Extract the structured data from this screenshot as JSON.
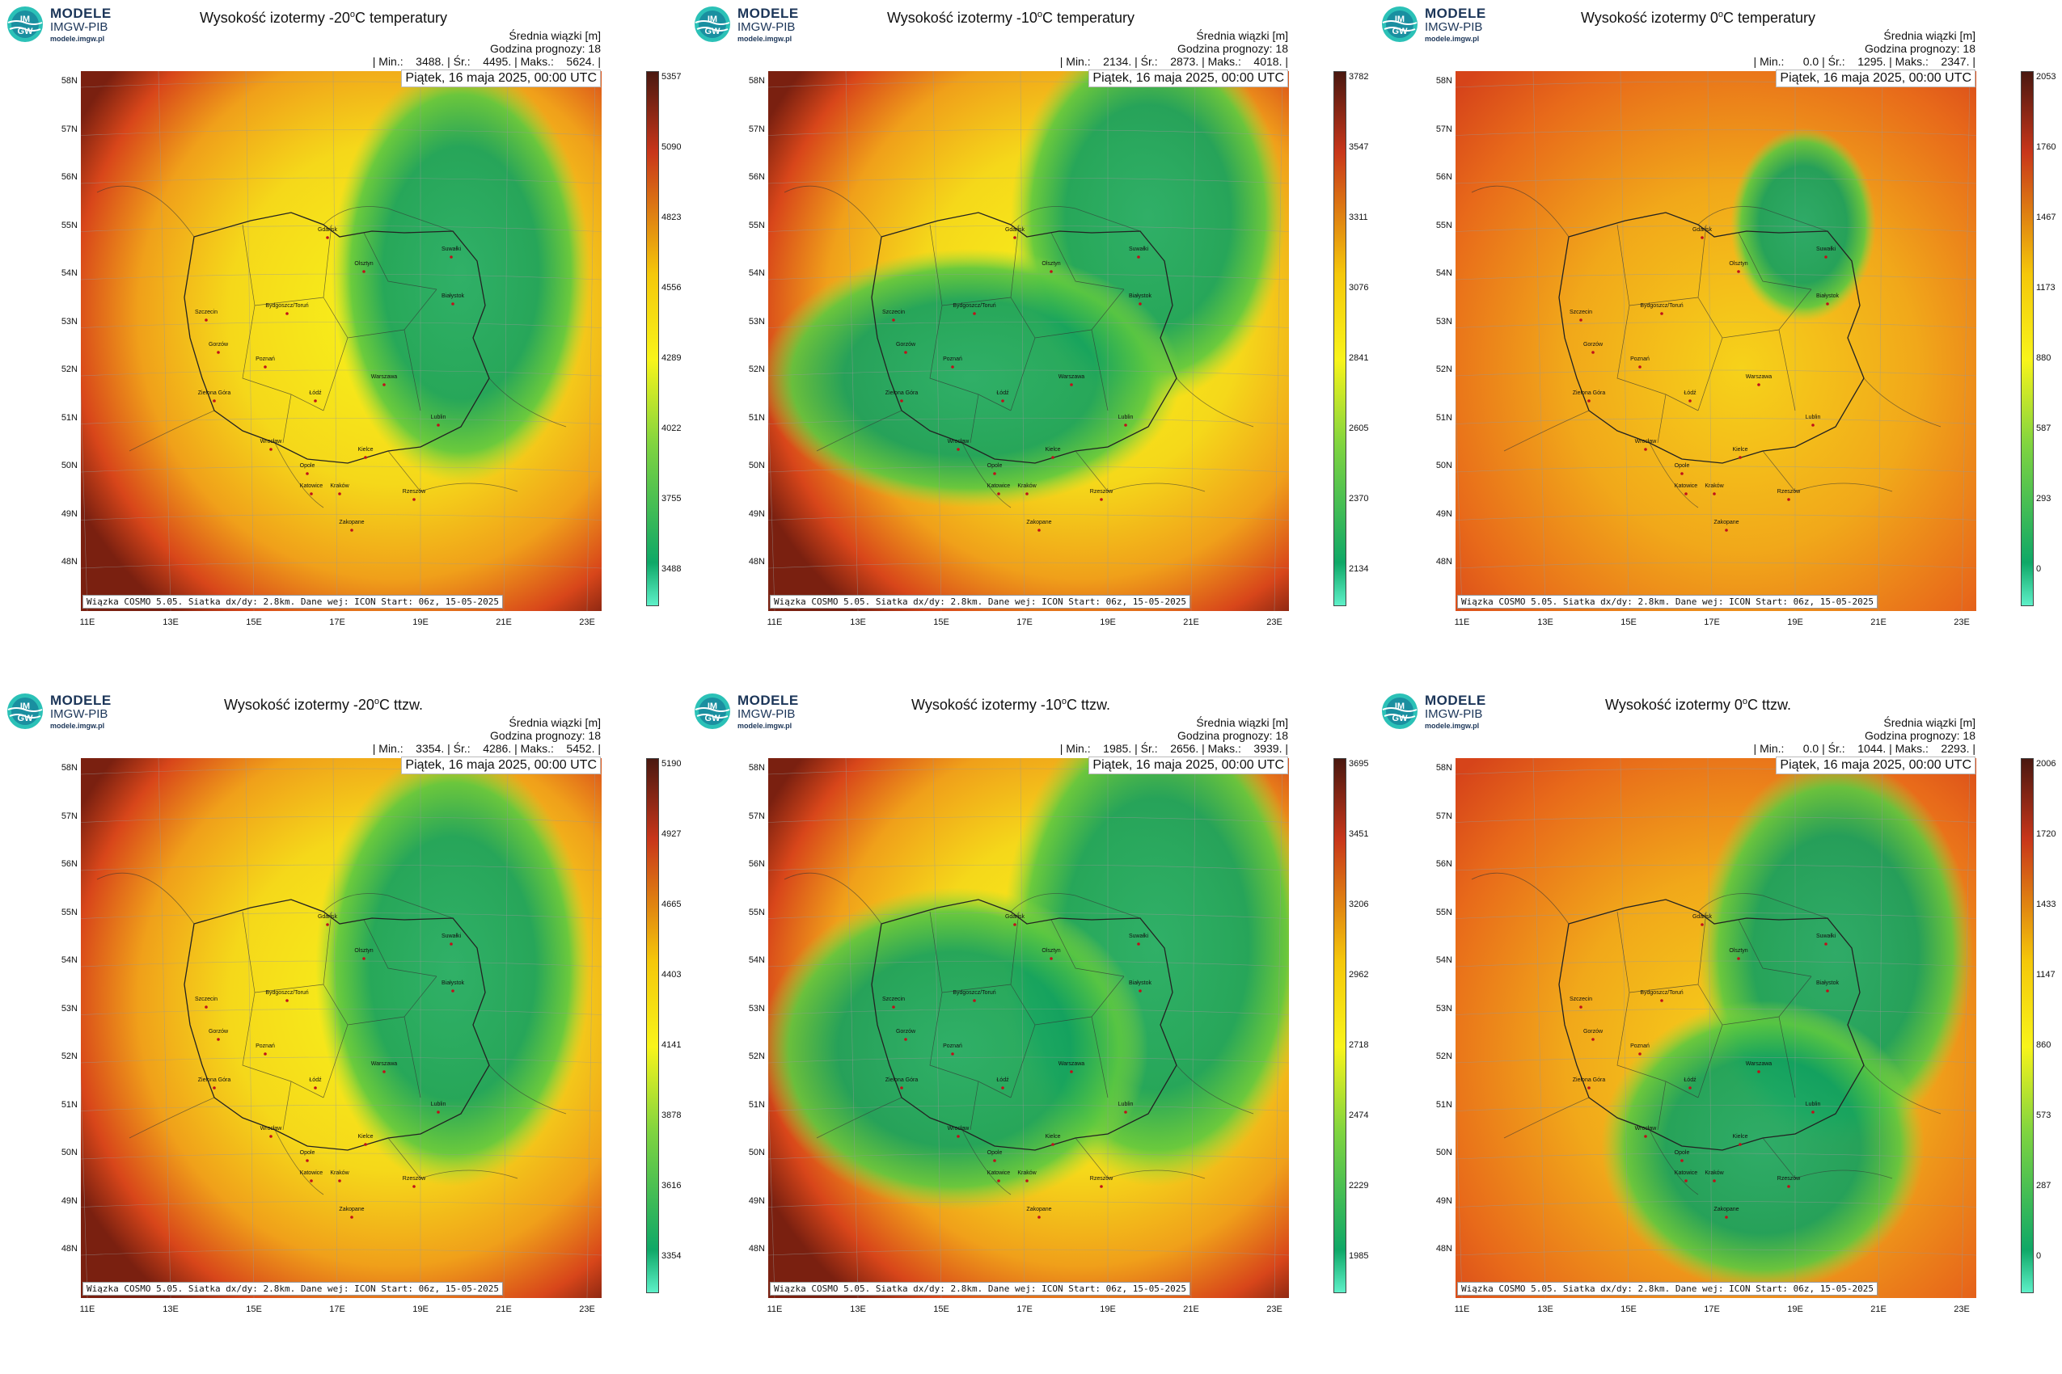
{
  "colors": {
    "scale_top": "#4a1810",
    "scale_high": "#c8361a",
    "scale_mid": "#f5c80a",
    "scale_mid_low": "#f8f41a",
    "scale_green": "#7fd440",
    "scale_low": "#0fa867",
    "scale_min": "#5ef0c8"
  },
  "logo": {
    "line1": "MODELE",
    "line2": "IMGW-PIB",
    "line3": "modele.imgw.pl",
    "icon_text": "IM GW"
  },
  "common": {
    "info_title": "Średnia wiązki [m]",
    "forecast_hour": "Godzina prognozy: 18",
    "date": "Piątek, 16 maja 2025, 00:00 UTC",
    "footer": "Wiązka COSMO 5.05. Siatka dx/dy: 2.8km. Dane wej: ICON Start: 06z, 15-05-2025",
    "lat_labels": [
      "58N",
      "57N",
      "56N",
      "55N",
      "54N",
      "53N",
      "52N",
      "51N",
      "50N",
      "49N",
      "48N"
    ],
    "lon_labels": [
      "11E",
      "13E",
      "15E",
      "17E",
      "19E",
      "21E",
      "23E"
    ],
    "cities": [
      "Gdańsk",
      "Olsztyn",
      "Suwałki",
      "Białystok",
      "Szczecin",
      "Bydgoszcz/Toruń",
      "Gorzów",
      "Poznań",
      "Warszawa",
      "Łódź",
      "Zielona Góra",
      "Lublin",
      "Wrocław",
      "Kielce",
      "Opole",
      "Katowice",
      "Kraków",
      "Rzeszów",
      "Zakopane"
    ]
  },
  "panels": [
    {
      "title_pre": "Wysokość izotermy -20",
      "title_sup": "o",
      "title_post": "C temperatury",
      "stats": "| Min.:    3488. | Śr.:    4495. | Maks.:    5624. |",
      "colorbar": [
        "5357",
        "5090",
        "4823",
        "4556",
        "4289",
        "4022",
        "3755",
        "3488"
      ]
    },
    {
      "title_pre": "Wysokość izotermy -10",
      "title_sup": "o",
      "title_post": "C temperatury",
      "stats": "| Min.:    2134. | Śr.:    2873. | Maks.:    4018. |",
      "colorbar": [
        "3782",
        "3547",
        "3311",
        "3076",
        "2841",
        "2605",
        "2370",
        "2134"
      ]
    },
    {
      "title_pre": "Wysokość izotermy 0",
      "title_sup": "o",
      "title_post": "C temperatury",
      "stats": "| Min.:      0.0 | Śr.:    1295. | Maks.:    2347. |",
      "colorbar": [
        "2053",
        "1760",
        "1467",
        "1173",
        "880",
        "587",
        "293",
        "0"
      ]
    },
    {
      "title_pre": "Wysokość izotermy -20",
      "title_sup": "o",
      "title_post": "C ttzw.",
      "stats": "| Min.:    3354. | Śr.:    4286. | Maks.:    5452. |",
      "colorbar": [
        "5190",
        "4927",
        "4665",
        "4403",
        "4141",
        "3878",
        "3616",
        "3354"
      ]
    },
    {
      "title_pre": "Wysokość izotermy -10",
      "title_sup": "o",
      "title_post": "C ttzw.",
      "stats": "| Min.:    1985. | Śr.:    2656. | Maks.:    3939. |",
      "colorbar": [
        "3695",
        "3451",
        "3206",
        "2962",
        "2718",
        "2474",
        "2229",
        "1985"
      ]
    },
    {
      "title_pre": "Wysokość izotermy 0",
      "title_sup": "o",
      "title_post": "C ttzw.",
      "stats": "| Min.:      0.0 | Śr.:    1044. | Maks.:    2293. |",
      "colorbar": [
        "2006",
        "1720",
        "1433",
        "1147",
        "860",
        "573",
        "287",
        "0"
      ]
    }
  ]
}
